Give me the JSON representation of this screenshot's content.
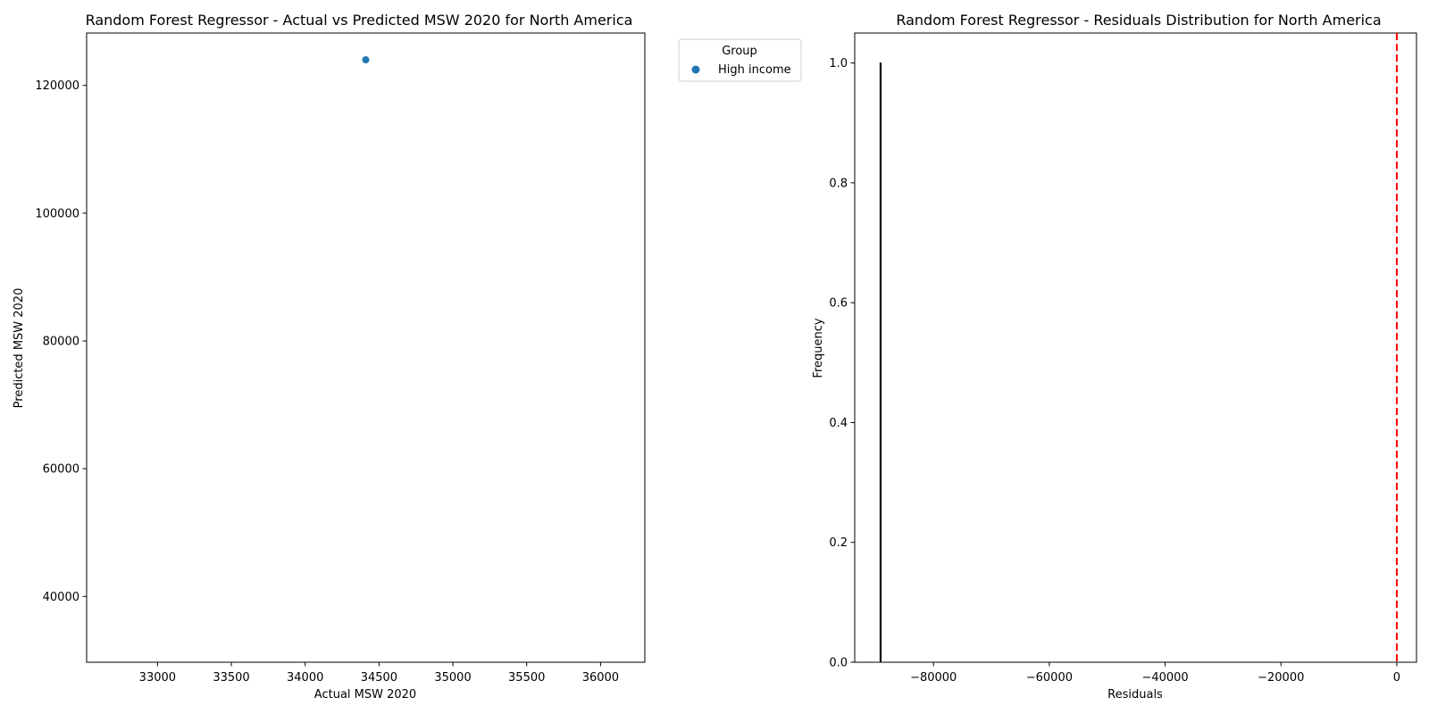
{
  "chart_data": [
    {
      "type": "scatter",
      "title": "Random Forest Regressor - Actual vs Predicted MSW 2020 for North America",
      "xlabel": "Actual MSW 2020",
      "ylabel": "Predicted MSW 2020",
      "xlim": [
        32520,
        36300
      ],
      "ylim": [
        29700,
        128200
      ],
      "x_ticks": [
        33000,
        33500,
        34000,
        34500,
        35000,
        35500,
        36000
      ],
      "x_tick_labels": [
        "33000",
        "33500",
        "34000",
        "34500",
        "35000",
        "35500",
        "36000"
      ],
      "y_ticks": [
        40000,
        60000,
        80000,
        100000,
        120000
      ],
      "y_tick_labels": [
        "40000",
        "60000",
        "80000",
        "100000",
        "120000"
      ],
      "grid": false,
      "legend": {
        "title": "Group",
        "placement": "outside upper right",
        "entries": [
          "High income"
        ]
      },
      "series": [
        {
          "name": "High income",
          "color": "#1f77b4",
          "points": [
            {
              "x": 34410,
              "y": 124000
            }
          ]
        }
      ]
    },
    {
      "type": "bar",
      "subtype": "histogram",
      "title": "Random Forest Regressor - Residuals Distribution for North America",
      "xlabel": "Residuals",
      "ylabel": "Frequency",
      "xlim": [
        -93600,
        3400
      ],
      "ylim": [
        0,
        1.05
      ],
      "x_ticks": [
        -80000,
        -60000,
        -40000,
        -20000,
        0
      ],
      "x_tick_labels": [
        "−80000",
        "−60000",
        "−40000",
        "−20000",
        "0"
      ],
      "y_ticks": [
        0.0,
        0.2,
        0.4,
        0.6,
        0.8,
        1.0
      ],
      "y_tick_labels": [
        "0.0",
        "0.2",
        "0.4",
        "0.6",
        "0.8",
        "1.0"
      ],
      "grid": false,
      "bins": [
        {
          "x": -89150,
          "count": 1
        }
      ],
      "reference_line": {
        "x": 0,
        "color": "#ff0000",
        "style": "dashed"
      }
    }
  ]
}
